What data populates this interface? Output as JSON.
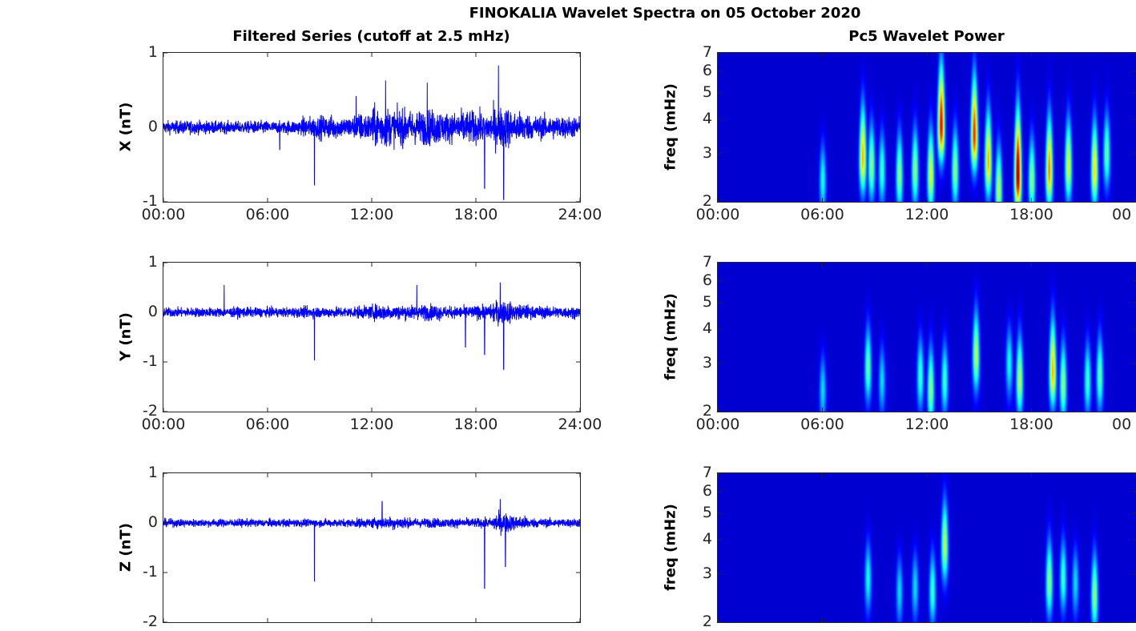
{
  "figure_title": "FINOKALIA Wavelet Spectra on 05 October 2020",
  "left_title": "Filtered Series (cutoff at 2.5 mHz)",
  "right_title": "Pc5 Wavelet Power",
  "colors": {
    "series": "#0000ff",
    "wavelet_bg": "#00008f"
  },
  "chart_data": [
    {
      "type": "line",
      "component": "X",
      "ylabel": "X (nT)",
      "ylim": [
        -1,
        1
      ],
      "yticks": [
        "1",
        "0",
        "-1"
      ],
      "yvals": [
        1,
        0,
        -1
      ],
      "xlim_hours": [
        0,
        24
      ],
      "xticks": [
        "00:00",
        "06:00",
        "12:00",
        "18:00",
        "24:00"
      ],
      "envelope_hourly": [
        0.11,
        0.11,
        0.11,
        0.1,
        0.1,
        0.11,
        0.1,
        0.12,
        0.18,
        0.2,
        0.18,
        0.24,
        0.34,
        0.3,
        0.28,
        0.3,
        0.25,
        0.28,
        0.26,
        0.34,
        0.26,
        0.2,
        0.2,
        0.18
      ],
      "spikes": [
        {
          "t": 6.7,
          "v": -0.3
        },
        {
          "t": 8.7,
          "v": -0.78
        },
        {
          "t": 11.1,
          "v": 0.42
        },
        {
          "t": 12.8,
          "v": 0.63
        },
        {
          "t": 15.2,
          "v": 0.6
        },
        {
          "t": 18.5,
          "v": -0.82
        },
        {
          "t": 19.3,
          "v": 0.83
        },
        {
          "t": 19.6,
          "v": -0.97
        }
      ]
    },
    {
      "type": "line",
      "component": "Y",
      "ylabel": "Y (nT)",
      "ylim": [
        -2,
        1
      ],
      "yticks": [
        "1",
        "0",
        "-1",
        "-2"
      ],
      "yvals": [
        1,
        0,
        -1,
        -2
      ],
      "xlim_hours": [
        0,
        24
      ],
      "xticks": [
        "00:00",
        "06:00",
        "12:00",
        "18:00",
        "24:00"
      ],
      "envelope_hourly": [
        0.12,
        0.12,
        0.12,
        0.12,
        0.13,
        0.12,
        0.12,
        0.13,
        0.14,
        0.14,
        0.14,
        0.16,
        0.2,
        0.18,
        0.18,
        0.2,
        0.15,
        0.16,
        0.18,
        0.3,
        0.2,
        0.16,
        0.15,
        0.15
      ],
      "spikes": [
        {
          "t": 3.5,
          "v": 0.55
        },
        {
          "t": 8.7,
          "v": -0.97
        },
        {
          "t": 14.6,
          "v": 0.55
        },
        {
          "t": 17.4,
          "v": -0.7
        },
        {
          "t": 18.5,
          "v": -0.85
        },
        {
          "t": 19.6,
          "v": -1.15
        },
        {
          "t": 19.4,
          "v": 0.6
        }
      ]
    },
    {
      "type": "line",
      "component": "Z",
      "ylabel": "Z (nT)",
      "ylim": [
        -2,
        1
      ],
      "yticks": [
        "1",
        "0",
        "-1",
        "-2"
      ],
      "yvals": [
        1,
        0,
        -1,
        -2
      ],
      "xlim_hours": [
        0,
        24
      ],
      "xticks": [],
      "envelope_hourly": [
        0.1,
        0.1,
        0.1,
        0.1,
        0.1,
        0.1,
        0.1,
        0.1,
        0.1,
        0.1,
        0.1,
        0.12,
        0.14,
        0.16,
        0.12,
        0.12,
        0.12,
        0.12,
        0.12,
        0.25,
        0.18,
        0.12,
        0.11,
        0.11
      ],
      "spikes": [
        {
          "t": 8.7,
          "v": -1.18
        },
        {
          "t": 12.6,
          "v": 0.43
        },
        {
          "t": 18.5,
          "v": -1.32
        },
        {
          "t": 19.4,
          "v": 0.48
        },
        {
          "t": 19.7,
          "v": -0.88
        }
      ]
    },
    {
      "type": "heatmap",
      "component": "X",
      "ylabel": "freq (mHz)",
      "yscale": "log",
      "ylim": [
        2,
        7
      ],
      "yticks": [
        "7",
        "6",
        "5",
        "4",
        "3",
        "2"
      ],
      "yvals": [
        7,
        6,
        5,
        4,
        3,
        2
      ],
      "xlim_hours": [
        0,
        24
      ],
      "xticks": [
        "00:00",
        "06:00",
        "12:00",
        "18:00",
        "00"
      ],
      "colormap": "jet",
      "events": [
        [
          6.0,
          2.4,
          0.35
        ],
        [
          8.3,
          2.9,
          0.7
        ],
        [
          8.8,
          2.7,
          0.5
        ],
        [
          9.4,
          2.6,
          0.4
        ],
        [
          10.4,
          2.5,
          0.5
        ],
        [
          11.3,
          2.6,
          0.5
        ],
        [
          12.2,
          2.5,
          0.6
        ],
        [
          12.8,
          3.8,
          0.9
        ],
        [
          13.6,
          2.6,
          0.5
        ],
        [
          14.7,
          3.5,
          0.85
        ],
        [
          15.5,
          2.8,
          0.7
        ],
        [
          16.1,
          2.2,
          0.55
        ],
        [
          17.2,
          2.5,
          1.0
        ],
        [
          18.0,
          2.4,
          0.5
        ],
        [
          19.0,
          2.6,
          0.75
        ],
        [
          20.1,
          2.7,
          0.6
        ],
        [
          21.6,
          2.6,
          0.65
        ],
        [
          22.3,
          3.0,
          0.45
        ]
      ]
    },
    {
      "type": "heatmap",
      "component": "Y",
      "ylabel": "freq (mHz)",
      "yscale": "log",
      "ylim": [
        2,
        7
      ],
      "yticks": [
        "7",
        "6",
        "5",
        "4",
        "3",
        "2"
      ],
      "yvals": [
        7,
        6,
        5,
        4,
        3,
        2
      ],
      "xlim_hours": [
        0,
        24
      ],
      "xticks": [
        "00:00",
        "06:00",
        "12:00",
        "18:00",
        "00"
      ],
      "colormap": "jet",
      "events": [
        [
          6.0,
          2.4,
          0.3
        ],
        [
          8.6,
          2.9,
          0.45
        ],
        [
          9.4,
          2.6,
          0.3
        ],
        [
          11.6,
          2.7,
          0.4
        ],
        [
          12.2,
          2.4,
          0.5
        ],
        [
          13.0,
          2.6,
          0.4
        ],
        [
          14.8,
          3.2,
          0.55
        ],
        [
          16.7,
          3.0,
          0.35
        ],
        [
          17.3,
          2.6,
          0.55
        ],
        [
          19.2,
          2.8,
          0.7
        ],
        [
          19.8,
          2.5,
          0.5
        ],
        [
          21.2,
          2.6,
          0.4
        ],
        [
          21.9,
          2.7,
          0.45
        ]
      ]
    },
    {
      "type": "heatmap",
      "component": "Z",
      "ylabel": "freq (mHz)",
      "yscale": "log",
      "ylim": [
        2,
        7
      ],
      "yticks": [
        "7",
        "6",
        "5",
        "4",
        "3",
        "2"
      ],
      "yvals": [
        7,
        6,
        5,
        4,
        3,
        2
      ],
      "xlim_hours": [
        0,
        24
      ],
      "xticks": [],
      "colormap": "jet",
      "events": [
        [
          8.6,
          2.9,
          0.35
        ],
        [
          10.4,
          2.6,
          0.3
        ],
        [
          11.3,
          2.7,
          0.3
        ],
        [
          12.3,
          2.6,
          0.4
        ],
        [
          13.0,
          3.8,
          0.55
        ],
        [
          19.0,
          2.8,
          0.5
        ],
        [
          19.8,
          2.9,
          0.4
        ],
        [
          20.5,
          2.8,
          0.3
        ],
        [
          21.6,
          2.5,
          0.5
        ]
      ]
    }
  ]
}
